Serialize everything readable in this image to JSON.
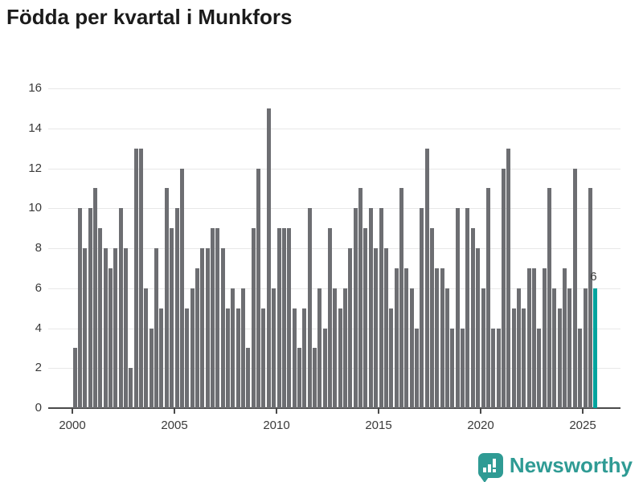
{
  "title": "Födda per kvartal i Munkfors",
  "footer": {
    "brand": "Newsworthy"
  },
  "colors": {
    "bar": "#6d6e72",
    "highlight": "#00a49e",
    "axis": "#4a4a4a",
    "grid": "#e8e8e8",
    "text": "#3a3a3a",
    "title_text": "#1b1b1b",
    "brand_teal": "#2f9b94"
  },
  "chart_data": {
    "type": "bar",
    "title": "Födda per kvartal i Munkfors",
    "xlabel": "",
    "ylabel": "",
    "x_unit": "quarter",
    "x_tick_labels": [
      "2000",
      "2005",
      "2010",
      "2015",
      "2020",
      "2025"
    ],
    "quarters_per_tick": 20,
    "ylim": [
      0,
      16
    ],
    "y_ticks": [
      0,
      2,
      4,
      6,
      8,
      10,
      12,
      14,
      16
    ],
    "grid": true,
    "legend": "none",
    "series": [
      {
        "name": "Födda",
        "start": "2000-Q1",
        "end": "2025-Q3",
        "values": [
          3,
          10,
          8,
          10,
          11,
          9,
          8,
          7,
          8,
          10,
          8,
          2,
          13,
          13,
          6,
          4,
          8,
          5,
          11,
          9,
          10,
          12,
          5,
          6,
          7,
          8,
          8,
          9,
          9,
          8,
          5,
          6,
          5,
          6,
          3,
          9,
          12,
          5,
          15,
          6,
          9,
          9,
          9,
          5,
          3,
          5,
          10,
          3,
          6,
          4,
          9,
          6,
          5,
          6,
          8,
          10,
          11,
          9,
          10,
          8,
          10,
          8,
          5,
          7,
          11,
          7,
          6,
          4,
          10,
          13,
          9,
          7,
          7,
          6,
          4,
          10,
          4,
          10,
          9,
          8,
          6,
          11,
          4,
          4,
          12,
          13,
          5,
          6,
          5,
          7,
          7,
          4,
          7,
          11,
          6,
          5,
          7,
          6,
          12,
          4,
          6,
          11,
          6
        ]
      }
    ],
    "highlight_last_bar": true,
    "last_bar_label": "6"
  }
}
